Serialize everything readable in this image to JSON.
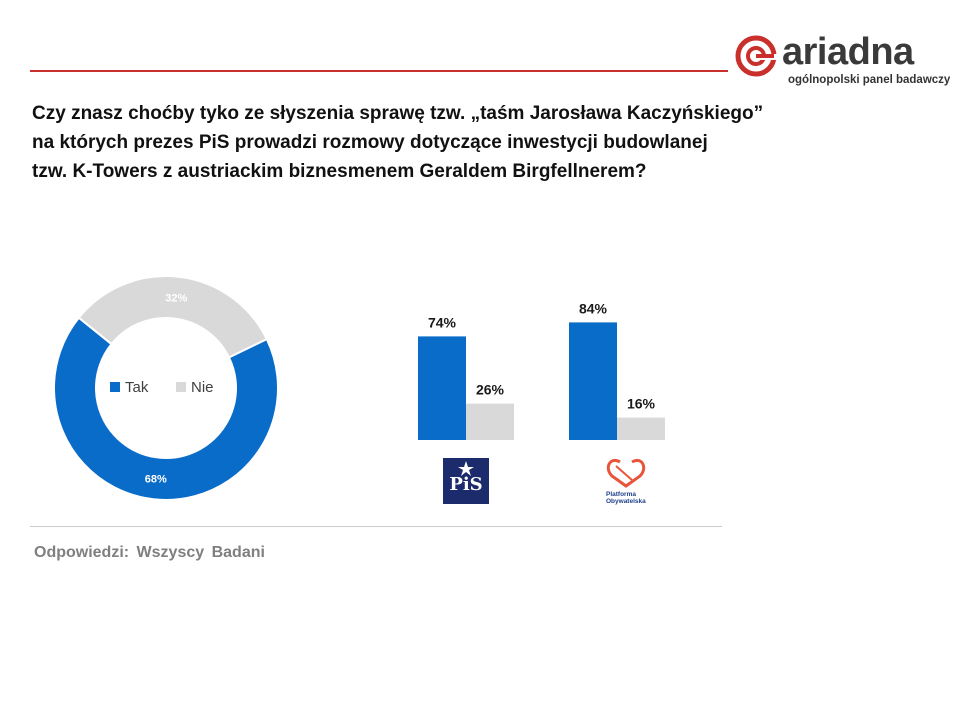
{
  "brand": {
    "name": "ariadna",
    "tagline": "ogólnopolski panel badawczy",
    "accent": "#c9302c"
  },
  "question": [
    "Czy znasz choćby tyko ze słyszenia sprawę tzw. „taśm Jarosława Kaczyńskiego”",
    "na których prezes PiS prowadzi rozmowy dotyczące inwestycji budowlanej",
    "tzw. K-Towers z austriackim biznesmenem Geraldem Birgfellnerem?"
  ],
  "note": "Odpowiedzi: Wszyscy Badani",
  "chart_data": [
    {
      "type": "pie",
      "labels": [
        "Tak",
        "Nie"
      ],
      "values": [
        68,
        32
      ],
      "value_labels": [
        "68%",
        "32%"
      ],
      "colors": [
        "#0a6cc9",
        "#d9d9d9"
      ],
      "legend": "center"
    },
    {
      "type": "bar",
      "categories": [
        "PiS",
        "Platforma Obywatelska"
      ],
      "series": [
        {
          "name": "Tak",
          "values": [
            74,
            84
          ],
          "labels": [
            "74%",
            "84%"
          ],
          "color": "#0a6cc9"
        },
        {
          "name": "Nie",
          "values": [
            26,
            16
          ],
          "labels": [
            "26%",
            "16%"
          ],
          "color": "#d9d9d9"
        }
      ],
      "ylim": [
        0,
        100
      ]
    }
  ],
  "logos": {
    "pis": "PiS",
    "po": [
      "Platforma",
      "Obywatelska"
    ]
  }
}
